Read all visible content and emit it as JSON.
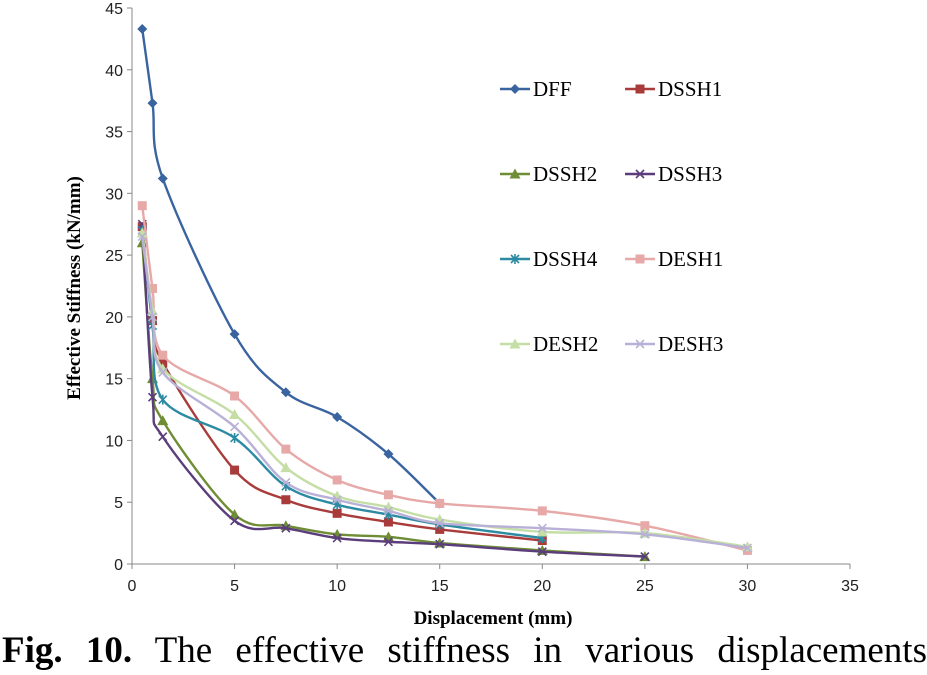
{
  "caption": {
    "label": "Fig. 10.",
    "text": "The effective stiffness in various displacements"
  },
  "chart_data": {
    "type": "line",
    "title": "",
    "xlabel": "Displacement (mm)",
    "ylabel": "Effective Stiffness (kN/mm)",
    "xlim": [
      0,
      35
    ],
    "ylim": [
      0,
      45
    ],
    "xticks": [
      0,
      5,
      10,
      15,
      20,
      25,
      30,
      35
    ],
    "yticks": [
      0,
      5,
      10,
      15,
      20,
      25,
      30,
      35,
      40,
      45
    ],
    "grid": false,
    "legend_position": "top-right, inside plot, 2 columns",
    "series": [
      {
        "name": "DFF",
        "color": "#3a64a0",
        "marker": "diamond",
        "x": [
          0.5,
          1,
          1.5,
          5,
          7.5,
          10,
          12.5,
          15
        ],
        "y": [
          43.3,
          37.3,
          31.2,
          18.6,
          13.9,
          11.9,
          8.9,
          4.9
        ]
      },
      {
        "name": "DSSH1",
        "color": "#a93b3a",
        "marker": "square",
        "x": [
          0.5,
          1,
          1.5,
          5,
          7.5,
          10,
          12.5,
          15,
          20
        ],
        "y": [
          27.3,
          19.7,
          16.3,
          7.6,
          5.2,
          4.1,
          3.4,
          2.8,
          1.9
        ]
      },
      {
        "name": "DSSH2",
        "color": "#6e8d35",
        "marker": "triangle",
        "x": [
          0.5,
          1,
          1.5,
          5,
          7.5,
          10,
          12.5,
          15,
          20,
          25
        ],
        "y": [
          26.0,
          15.0,
          11.6,
          4.0,
          3.1,
          2.4,
          2.2,
          1.7,
          1.1,
          0.6
        ]
      },
      {
        "name": "DSSH3",
        "color": "#5a3d7a",
        "marker": "x",
        "x": [
          0.5,
          1,
          1.5,
          5,
          7.5,
          10,
          12.5,
          15,
          20,
          25
        ],
        "y": [
          27.5,
          13.5,
          10.3,
          3.5,
          2.9,
          2.1,
          1.8,
          1.6,
          1.0,
          0.6
        ]
      },
      {
        "name": "DSSH4",
        "color": "#2d8aa3",
        "marker": "asterisk",
        "x": [
          0.5,
          1,
          1.5,
          5,
          7.5,
          10,
          12.5,
          15,
          20
        ],
        "y": [
          27.0,
          19.3,
          13.3,
          10.2,
          6.3,
          4.8,
          4.0,
          3.2,
          2.1
        ]
      },
      {
        "name": "DESH1",
        "color": "#e6a9a8",
        "marker": "square",
        "x": [
          0.5,
          1,
          1.5,
          5,
          7.5,
          10,
          12.5,
          15,
          20,
          25,
          30
        ],
        "y": [
          29.0,
          22.3,
          16.9,
          13.6,
          9.3,
          6.8,
          5.6,
          4.9,
          4.3,
          3.1,
          1.1
        ]
      },
      {
        "name": "DESH2",
        "color": "#c4dea6",
        "marker": "triangle",
        "x": [
          0.5,
          1,
          1.5,
          5,
          7.5,
          10,
          12.5,
          15,
          20,
          25,
          30
        ],
        "y": [
          26.8,
          20.5,
          15.8,
          12.1,
          7.8,
          5.5,
          4.6,
          3.6,
          2.6,
          2.5,
          1.4
        ]
      },
      {
        "name": "DESH3",
        "color": "#b8b0d6",
        "marker": "x",
        "x": [
          0.5,
          1,
          1.5,
          5,
          7.5,
          10,
          12.5,
          15,
          20,
          25,
          30
        ],
        "y": [
          26.5,
          20.0,
          15.5,
          11.1,
          6.6,
          5.2,
          4.3,
          3.3,
          2.9,
          2.4,
          1.3
        ]
      }
    ]
  }
}
